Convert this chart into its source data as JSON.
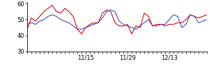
{
  "red_y": [
    44,
    51,
    49,
    52,
    55,
    57,
    59,
    55,
    54,
    57,
    55,
    52,
    44,
    41,
    45,
    47,
    48,
    48,
    54,
    56,
    55,
    48,
    46,
    46,
    47,
    41,
    46,
    45,
    54,
    52,
    46,
    47,
    47,
    46,
    47,
    47,
    48,
    48,
    50,
    53,
    52,
    51,
    52,
    53
  ],
  "blue_y": [
    47,
    48,
    47,
    49,
    50,
    52,
    53,
    52,
    50,
    49,
    48,
    46,
    44,
    44,
    45,
    46,
    47,
    48,
    51,
    55,
    56,
    55,
    49,
    47,
    46,
    45,
    44,
    46,
    48,
    50,
    46,
    46,
    47,
    47,
    50,
    53,
    52,
    45,
    47,
    53,
    52,
    48,
    49,
    50
  ],
  "ylim": [
    30,
    61
  ],
  "yticks": [
    30,
    40,
    50,
    60
  ],
  "xtick_positions": [
    14,
    24,
    34
  ],
  "xtick_labels": [
    "11/15",
    "11/29",
    "12/13"
  ],
  "red_color": "#dd0000",
  "blue_color": "#4444bb",
  "bg_color": "#ffffff",
  "linewidth": 0.8
}
